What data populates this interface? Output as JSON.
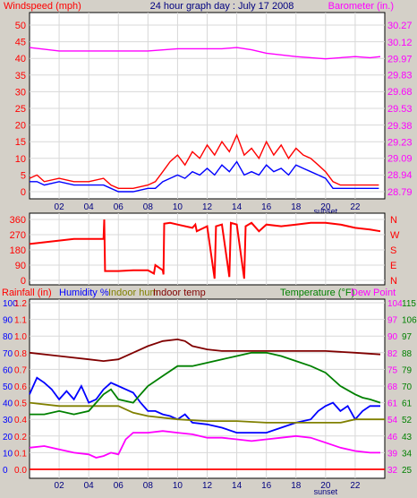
{
  "chart_data": [
    {
      "type": "line",
      "title": "24 hour graph day : July 17 2008",
      "left_axis_label": "Windspeed (mph)",
      "right_axis_label": "Barometer (in.)",
      "left_ticks": [
        "0",
        "5",
        "10",
        "15",
        "20",
        "25",
        "30",
        "35",
        "40",
        "45",
        "50"
      ],
      "right_ticks": [
        "28.79",
        "28.94",
        "29.09",
        "29.23",
        "29.38",
        "29.53",
        "29.68",
        "29.83",
        "29.97",
        "30.12",
        "30.27"
      ],
      "x_ticks": [
        "02",
        "04",
        "06",
        "08",
        "10",
        "12",
        "14",
        "16",
        "18",
        "20",
        "22"
      ],
      "x_range": [
        0,
        24
      ],
      "left_range": [
        0,
        50
      ],
      "right_range": [
        28.79,
        30.27
      ],
      "annotation": "sunset",
      "series": [
        {
          "axis": "left",
          "color": "#ff0000",
          "x": [
            0,
            0.5,
            1,
            2,
            3,
            4,
            5,
            5.5,
            6,
            7,
            8,
            8.5,
            9,
            9.5,
            10,
            10.5,
            11,
            11.5,
            12,
            12.5,
            13,
            13.5,
            14,
            14.5,
            15,
            15.5,
            16,
            16.5,
            17,
            17.5,
            18,
            18.5,
            19,
            19.5,
            20,
            20.5,
            21,
            22,
            23,
            23.6
          ],
          "y": [
            4,
            5,
            3,
            4,
            3,
            3,
            4,
            2,
            1,
            1,
            2,
            3,
            6,
            9,
            11,
            8,
            12,
            10,
            14,
            11,
            15,
            12,
            17,
            11,
            13,
            10,
            15,
            11,
            14,
            10,
            13,
            11,
            10,
            8,
            6,
            3,
            2,
            2,
            2,
            2
          ]
        },
        {
          "axis": "left",
          "color": "#0000ff",
          "x": [
            0,
            0.5,
            1,
            2,
            3,
            4,
            5,
            5.5,
            6,
            7,
            8,
            8.5,
            9,
            9.5,
            10,
            10.5,
            11,
            11.5,
            12,
            12.5,
            13,
            13.5,
            14,
            14.5,
            15,
            15.5,
            16,
            16.5,
            17,
            17.5,
            18,
            18.5,
            19,
            19.5,
            20,
            20.5,
            21,
            22,
            23,
            23.6
          ],
          "y": [
            3,
            3,
            2,
            3,
            2,
            2,
            2,
            1,
            0,
            0,
            1,
            1,
            3,
            4,
            5,
            4,
            6,
            5,
            7,
            5,
            8,
            6,
            9,
            5,
            6,
            5,
            8,
            6,
            7,
            5,
            8,
            7,
            6,
            5,
            4,
            1,
            1,
            1,
            1,
            1
          ]
        },
        {
          "axis": "right",
          "color": "#ff00ff",
          "x": [
            0,
            2,
            4,
            6,
            8,
            10,
            11,
            12,
            13,
            14,
            15,
            16,
            18,
            19,
            20,
            21,
            22,
            23,
            23.7
          ],
          "y": [
            30.07,
            30.04,
            30.04,
            30.04,
            30.04,
            30.06,
            30.06,
            30.06,
            30.06,
            30.07,
            30.05,
            30.02,
            29.99,
            29.98,
            29.97,
            29.98,
            29.99,
            29.98,
            29.99
          ]
        }
      ]
    },
    {
      "type": "scatter",
      "title": "",
      "left_ticks": [
        "360",
        "270",
        "180",
        "90",
        "0"
      ],
      "right_ticks": [
        "N",
        "W",
        "S",
        "E",
        "N"
      ],
      "x_range": [
        0,
        24
      ],
      "y_range": [
        0,
        360
      ],
      "series": [
        {
          "color": "#ff0000",
          "x": [
            0,
            1,
            2,
            3,
            4,
            5,
            5.05,
            5.1,
            6,
            7,
            8,
            8.4,
            8.5,
            9,
            9.05,
            9.1,
            9.5,
            10,
            11,
            11.2,
            11.3,
            12,
            12.5,
            12.6,
            13,
            13.5,
            13.6,
            14,
            14.5,
            14.6,
            15,
            15.5,
            16,
            17,
            18,
            19,
            20,
            21,
            22,
            23,
            23.7
          ],
          "y": [
            215,
            225,
            235,
            245,
            245,
            245,
            360,
            55,
            55,
            60,
            60,
            40,
            90,
            60,
            35,
            335,
            340,
            330,
            310,
            330,
            290,
            320,
            10,
            320,
            330,
            20,
            340,
            330,
            10,
            320,
            340,
            290,
            330,
            320,
            330,
            340,
            340,
            330,
            310,
            300,
            290
          ]
        }
      ]
    },
    {
      "type": "line",
      "title": "",
      "labels": [
        "Rainfall (in)",
        "Humidity %",
        "Indoor hum",
        "Indoor temp",
        "Temperature (°F)",
        "Dew Point"
      ],
      "left_ticks_1": [
        "0.0",
        "0.1",
        "0.2",
        "0.4",
        "0.5",
        "0.6",
        "0.7",
        "0.8",
        "1.0",
        "1.1",
        "1.2"
      ],
      "left_ticks_2": [
        "0",
        "10",
        "20",
        "30",
        "40",
        "50",
        "60",
        "70",
        "80",
        "90",
        "100"
      ],
      "right_ticks_1": [
        "32",
        "39",
        "46",
        "54",
        "61",
        "68",
        "75",
        "82",
        "90",
        "97",
        "104"
      ],
      "right_ticks_2": [
        "25",
        "34",
        "43",
        "52",
        "61",
        "70",
        "79",
        "88",
        "97",
        "106",
        "115"
      ],
      "x_ticks": [
        "02",
        "04",
        "06",
        "08",
        "10",
        "12",
        "14",
        "16",
        "18",
        "20",
        "22"
      ],
      "annotation": "sunset",
      "x_range": [
        0,
        24
      ],
      "y_range": [
        0,
        100
      ],
      "series": [
        {
          "name": "Rainfall (in)",
          "color": "#ff0000",
          "x": [
            0,
            24
          ],
          "y": [
            0,
            0
          ]
        },
        {
          "name": "Humidity %",
          "color": "#0000ff",
          "x": [
            0,
            0.5,
            1,
            1.5,
            2,
            2.5,
            3,
            3.5,
            4,
            4.5,
            5,
            5.5,
            6,
            6.5,
            7,
            7.5,
            8,
            8.5,
            9,
            9.5,
            10,
            10.5,
            11,
            12,
            13,
            14,
            15,
            16,
            17,
            18,
            19,
            19.5,
            20,
            20.5,
            21,
            21.5,
            22,
            22.5,
            23,
            23.7
          ],
          "y": [
            45,
            55,
            52,
            48,
            42,
            47,
            42,
            50,
            40,
            42,
            48,
            52,
            50,
            48,
            46,
            40,
            35,
            35,
            33,
            32,
            30,
            33,
            28,
            27,
            25,
            22,
            22,
            22,
            25,
            28,
            30,
            35,
            38,
            40,
            35,
            38,
            30,
            35,
            38,
            38
          ]
        },
        {
          "name": "Indoor hum",
          "color": "#808000",
          "x": [
            0,
            2,
            4,
            6,
            7,
            8,
            10,
            12,
            14,
            16,
            18,
            20,
            21,
            22,
            24
          ],
          "y": [
            40,
            38,
            38,
            38,
            34,
            32,
            30,
            29,
            29,
            28,
            28,
            28,
            28,
            30,
            30
          ]
        },
        {
          "name": "Indoor temp",
          "color": "#800000",
          "x": [
            0,
            2,
            4,
            5,
            6,
            7,
            8,
            9,
            10,
            10.5,
            11,
            12,
            13,
            14,
            16,
            18,
            20,
            22,
            23.7
          ],
          "y": [
            70,
            68,
            66,
            65,
            66,
            70,
            74,
            77,
            78,
            77,
            74,
            72,
            71,
            71,
            71,
            71,
            71,
            70,
            69
          ]
        },
        {
          "name": "Temperature (°F)",
          "color": "#008000",
          "x": [
            0,
            1,
            2,
            3,
            4,
            5,
            5.5,
            6,
            7,
            8,
            9,
            10,
            11,
            12,
            13,
            14,
            15,
            16,
            17,
            18,
            19,
            20,
            21,
            22,
            22.5,
            23,
            23.7
          ],
          "y": [
            33,
            33,
            35,
            33,
            35,
            45,
            48,
            42,
            40,
            50,
            56,
            62,
            62,
            64,
            66,
            68,
            70,
            70,
            68,
            65,
            62,
            58,
            50,
            45,
            43,
            42,
            40
          ]
        },
        {
          "name": "Dew Point",
          "color": "#ff00ff",
          "x": [
            0,
            1,
            2,
            3,
            4,
            4.5,
            5,
            5.5,
            6,
            6.5,
            7,
            8,
            9,
            10,
            11,
            12,
            13,
            14,
            15,
            16,
            17,
            18,
            19,
            20,
            21,
            22,
            23,
            23.7
          ],
          "y": [
            13,
            14,
            12,
            10,
            9,
            7,
            8,
            10,
            9,
            18,
            22,
            22,
            23,
            22,
            21,
            19,
            19,
            18,
            17,
            18,
            19,
            20,
            19,
            16,
            13,
            11,
            10,
            10
          ]
        }
      ]
    }
  ]
}
